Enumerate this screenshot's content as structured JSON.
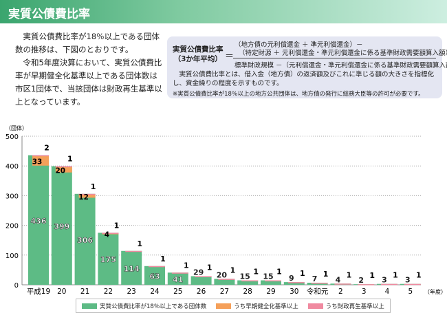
{
  "header": {
    "title": "実質公債費比率"
  },
  "intro": [
    "実質公債費比率が18％以上である団体数の推移は、下図のとおりです。",
    "令和5年度決算において、実質公債費比率が早期健全化基準以上である団体数は市区1団体で、当該団体は財政再生基準以上となっています。"
  ],
  "formula": {
    "label1": "実質公債費比率",
    "label2": "（3か年平均）",
    "eq": "＝",
    "num1": "（地方債の元利償還金 ＋ 準元利償還金）－",
    "num2": "（特定財源 ＋ 元利償還金・準元利償還金に係る基準財政需要額算入額）",
    "den": "標準財政規模 －（元利償還金・準元利償還金に係る基準財政需要額算入額）",
    "desc": "実質公債費比率とは、借入金（地方債）の返済額及びこれに準じる額の大きさを指標化し、資金繰りの程度を示すものです。",
    "note": "※実質公債費比率が18％以上の地方公共団体は、地方債の発行に総務大臣等の許可が必要です。"
  },
  "chart_data": {
    "type": "bar",
    "ylabel": "（団体）",
    "xlabel": "（年度）",
    "ylim": [
      0,
      500
    ],
    "yticks": [
      0,
      100,
      200,
      300,
      400,
      500
    ],
    "categories": [
      "平成19",
      "20",
      "21",
      "22",
      "23",
      "24",
      "25",
      "26",
      "27",
      "28",
      "29",
      "30",
      "令和元",
      "2",
      "3",
      "4",
      "5"
    ],
    "series": [
      {
        "name": "実質公債費比率が18％以上である団体数",
        "color": "#5dbb85",
        "values": [
          436,
          399,
          306,
          175,
          114,
          63,
          41,
          29,
          20,
          15,
          15,
          9,
          7,
          4,
          2,
          3,
          3
        ]
      },
      {
        "name": "うち早期健全化基準以上",
        "color": "#f5a05a",
        "values": [
          33,
          20,
          12,
          4,
          null,
          null,
          null,
          null,
          null,
          null,
          null,
          null,
          null,
          null,
          null,
          null,
          null
        ]
      },
      {
        "name": "うち財政再生基準以上",
        "color": "#f08aa0",
        "values": [
          2,
          1,
          1,
          1,
          1,
          1,
          1,
          1,
          1,
          1,
          1,
          1,
          1,
          1,
          1,
          1,
          1
        ]
      }
    ],
    "legend_position": "bottom"
  }
}
